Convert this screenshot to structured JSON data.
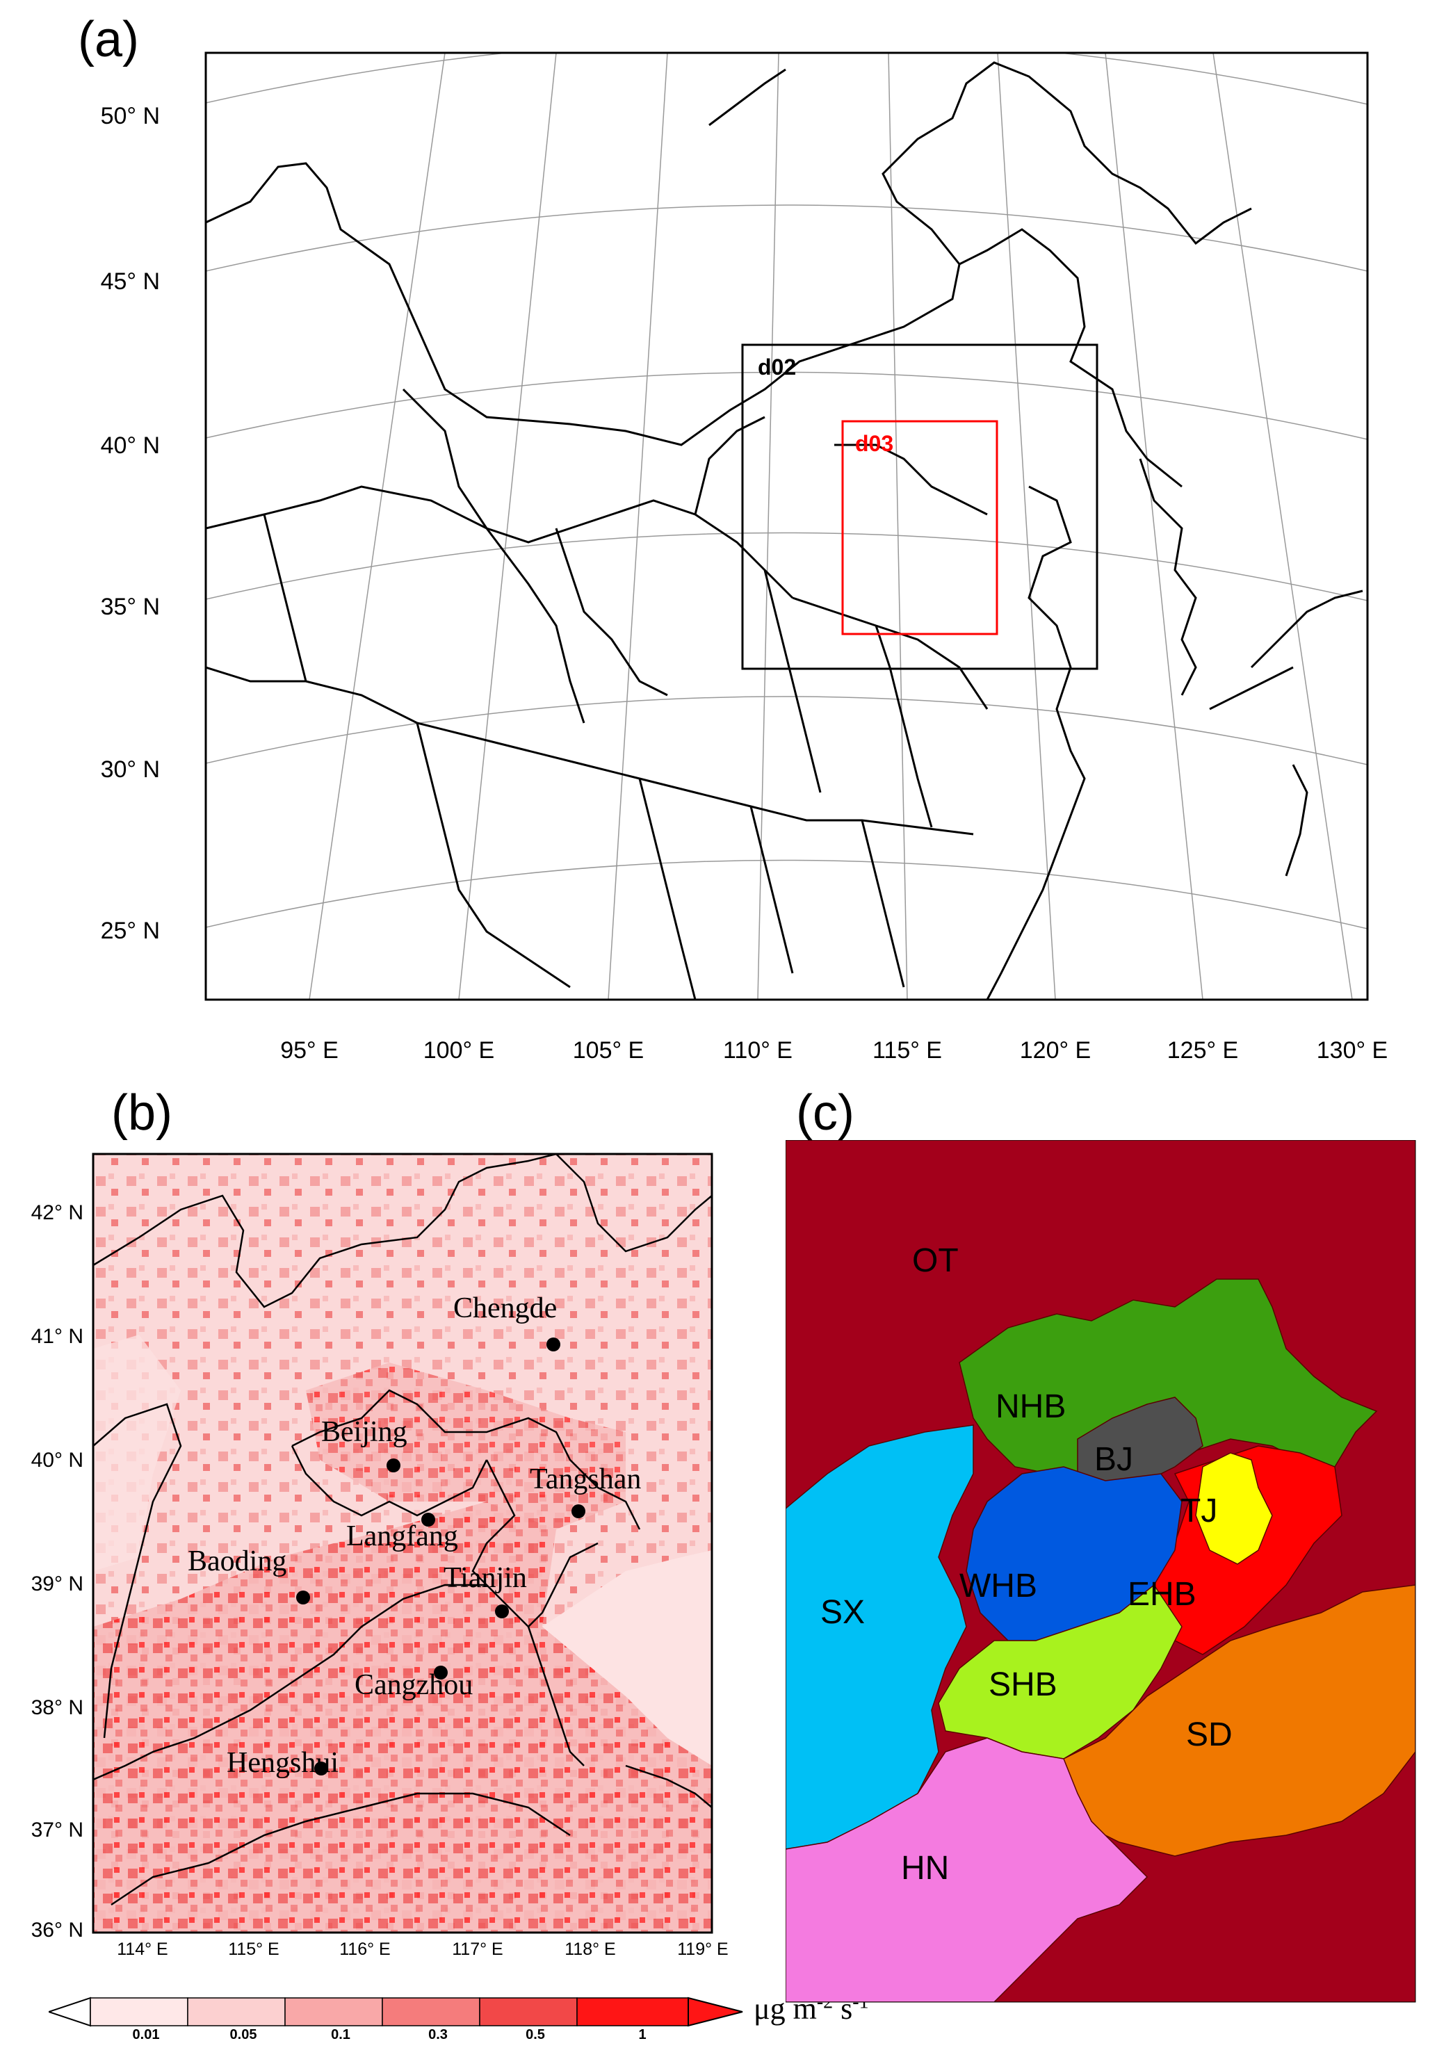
{
  "panel_a": {
    "label": "(a)",
    "lat_labels": [
      "50° N",
      "45° N",
      "40° N",
      "35° N",
      "30° N",
      "25° N"
    ],
    "lon_labels": [
      "95° E",
      "100° E",
      "105° E",
      "110° E",
      "115° E",
      "120° E",
      "125° E",
      "130° E"
    ],
    "domains": [
      {
        "name": "d02",
        "color": "#000000"
      },
      {
        "name": "d03",
        "color": "#ff0000"
      }
    ]
  },
  "panel_b": {
    "label": "(b)",
    "lat_labels": [
      "42° N",
      "41° N",
      "40° N",
      "39° N",
      "38° N",
      "37° N",
      "36° N"
    ],
    "lon_labels": [
      "114° E",
      "115° E",
      "116° E",
      "117° E",
      "118° E",
      "119° E"
    ],
    "cities": [
      "Chengde",
      "Beijing",
      "Tangshan",
      "Langfang",
      "Baoding",
      "Tianjin",
      "Cangzhou",
      "Hengshui"
    ],
    "colorbar": {
      "ticks": [
        "0.01",
        "0.05",
        "0.1",
        "0.3",
        "0.5",
        "1"
      ],
      "colors": [
        "#ffe8e8",
        "#fcd0d0",
        "#f9a8a8",
        "#f57c7c",
        "#f24848",
        "#ff1515"
      ],
      "unit_text": "μg m",
      "unit_exp1": "-2",
      "unit_s": " s",
      "unit_exp2": "-1"
    }
  },
  "panel_c": {
    "label": "(c)",
    "regions": [
      {
        "name": "OT",
        "color": "#a3001b"
      },
      {
        "name": "NHB",
        "color": "#3c9f0f"
      },
      {
        "name": "BJ",
        "color": "#4f4f4f"
      },
      {
        "name": "TJ",
        "color": "#ffff00"
      },
      {
        "name": "WHB",
        "color": "#0059e0"
      },
      {
        "name": "EHB",
        "color": "#ff0000"
      },
      {
        "name": "SX",
        "color": "#00c0f5"
      },
      {
        "name": "SHB",
        "color": "#a8f21e"
      },
      {
        "name": "SD",
        "color": "#f07800"
      },
      {
        "name": "HN",
        "color": "#f47be0"
      }
    ]
  }
}
